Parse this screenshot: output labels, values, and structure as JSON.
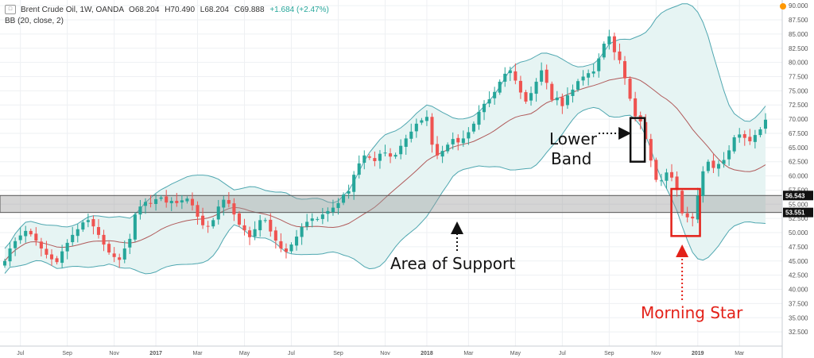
{
  "legend": {
    "title": "Brent Crude Oil, 1W, OANDA",
    "open": "O68.204",
    "high": "H70.490",
    "low": "L68.204",
    "close": "C69.888",
    "change": "+1.684 (+2.47%)",
    "indicator": "BB (20, close, 2)"
  },
  "chart_data": {
    "type": "candlestick",
    "ylim": [
      30,
      91
    ],
    "yticks": [
      "32.500",
      "35.000",
      "37.500",
      "40.000",
      "42.500",
      "45.000",
      "47.500",
      "50.000",
      "52.500",
      "55.000",
      "57.500",
      "60.000",
      "62.500",
      "65.000",
      "67.500",
      "70.000",
      "72.500",
      "75.000",
      "77.500",
      "80.000",
      "82.500",
      "85.000",
      "87.500",
      "90.000"
    ],
    "x_ticks": [
      {
        "idx": 3,
        "label": "Jul"
      },
      {
        "idx": 12,
        "label": "Sep"
      },
      {
        "idx": 21,
        "label": "Nov"
      },
      {
        "idx": 29,
        "label": "2017"
      },
      {
        "idx": 37,
        "label": "Mar"
      },
      {
        "idx": 46,
        "label": "May"
      },
      {
        "idx": 55,
        "label": "Jul"
      },
      {
        "idx": 64,
        "label": "Sep"
      },
      {
        "idx": 73,
        "label": "Nov"
      },
      {
        "idx": 81,
        "label": "2018"
      },
      {
        "idx": 89,
        "label": "Mar"
      },
      {
        "idx": 98,
        "label": "May"
      },
      {
        "idx": 107,
        "label": "Jul"
      },
      {
        "idx": 116,
        "label": "Sep"
      },
      {
        "idx": 125,
        "label": "Nov"
      },
      {
        "idx": 133,
        "label": "2019"
      },
      {
        "idx": 141,
        "label": "Mar"
      }
    ],
    "support_zone": [
      53.551,
      56.543
    ],
    "price_labels": {
      "top": "56.543",
      "bottom": "53.551",
      "current": "69.888"
    },
    "closes": [
      45,
      47.2,
      48.5,
      49.5,
      50.3,
      49.7,
      48.6,
      47.2,
      46.1,
      45.3,
      44.8,
      46.7,
      48.2,
      49.6,
      50.6,
      51.8,
      52.2,
      51.1,
      49.6,
      47.9,
      46.5,
      45.7,
      45.2,
      47.2,
      48.9,
      53.2,
      54.6,
      55.4,
      55.1,
      55.9,
      56.2,
      55.3,
      55.6,
      55.2,
      55.7,
      56,
      54.8,
      52.8,
      51.3,
      51.1,
      52.2,
      54.6,
      55.8,
      55.1,
      53.2,
      51.4,
      50.4,
      49.2,
      50.6,
      52.2,
      52.2,
      50.2,
      48.6,
      47.2,
      46.6,
      47.9,
      49.3,
      51,
      51.9,
      52.5,
      52.4,
      53.2,
      53.8,
      54.4,
      55.2,
      56.7,
      57.3,
      60.2,
      62.2,
      63.6,
      63.2,
      62.6,
      63.9,
      64.1,
      63.4,
      63.7,
      65.3,
      66.6,
      67.8,
      69.2,
      69.8,
      70.4,
      65.5,
      63.6,
      64.4,
      65.5,
      66.5,
      65.9,
      66.6,
      67.7,
      69.2,
      71.3,
      72.7,
      73.5,
      74.8,
      76.6,
      78,
      78.6,
      76.8,
      74.7,
      73.1,
      74.6,
      76.6,
      78.6,
      76.4,
      73.4,
      73.8,
      72.3,
      74.2,
      75.2,
      76.7,
      77.5,
      78.1,
      78.4,
      80.7,
      83.3,
      84.6,
      81.8,
      80.4,
      77.2,
      73.6,
      70.5,
      69.6,
      66.5,
      62.7,
      59.3,
      59.2,
      60.6,
      59.7,
      57.5,
      53.4,
      52.7,
      52.5,
      56.5,
      60.8,
      62.5,
      61.4,
      62.1,
      62.8,
      64.5,
      66.8,
      67.3,
      66.7,
      66.1,
      67.2,
      68.2,
      69.9
    ],
    "series": [
      {
        "name": "Price",
        "type": "candles"
      },
      {
        "name": "Basis",
        "type": "line",
        "color": "#b05a5a"
      },
      {
        "name": "Upper",
        "type": "line",
        "color": "#4fa7b0"
      },
      {
        "name": "Lower",
        "type": "line",
        "color": "#4fa7b0"
      }
    ],
    "colors": {
      "up": "#26a69a",
      "down": "#ef5350",
      "band": "#4fa7b0",
      "band_fill": "#e6f4f3",
      "basis": "#b05a5a",
      "annotation_red": "#e32119"
    }
  },
  "annotations": {
    "lower_band_line1": "Lower",
    "lower_band_line2": "Band",
    "support": "Area of Support",
    "morning_star": "Morning Star"
  }
}
